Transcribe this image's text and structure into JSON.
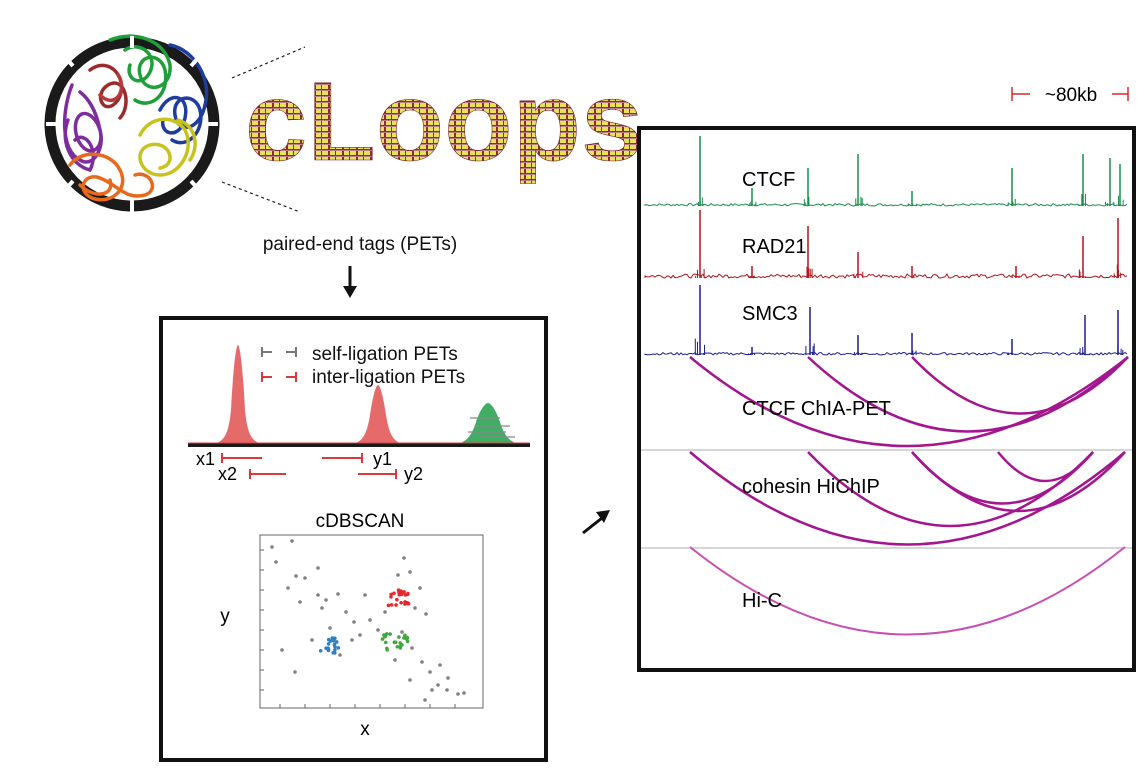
{
  "logo": {
    "text": "cLoops"
  },
  "caption_pets": "paired-end tags (PETs)",
  "legend": {
    "self_ligation": "self-ligation PETs",
    "inter_ligation": "inter-ligation PETs"
  },
  "coords": {
    "x1": "x1",
    "x2": "x2",
    "y1": "y1",
    "y2": "y2"
  },
  "scatter": {
    "title": "cDBSCAN",
    "xlabel": "x",
    "ylabel": "y"
  },
  "scale_bar": "~80kb",
  "tracks": [
    {
      "label": "CTCF",
      "color": "#1a8f4a"
    },
    {
      "label": "RAD21",
      "color": "#b0151c"
    },
    {
      "label": "SMC3",
      "color": "#1c1c8c"
    }
  ],
  "arc_panels": [
    {
      "label": "CTCF ChIA-PET",
      "color": "#a3168f"
    },
    {
      "label": "cohesin HiChIP",
      "color": "#a3168f"
    },
    {
      "label": "Hi-C",
      "color": "#c84fb0"
    }
  ],
  "colors": {
    "peak_red": "#e56b6b",
    "peak_green": "#3fae64",
    "cluster_red": "#e8262a",
    "cluster_green": "#3fa83f",
    "cluster_blue": "#2f7fc4",
    "noise_gray": "#808080"
  }
}
